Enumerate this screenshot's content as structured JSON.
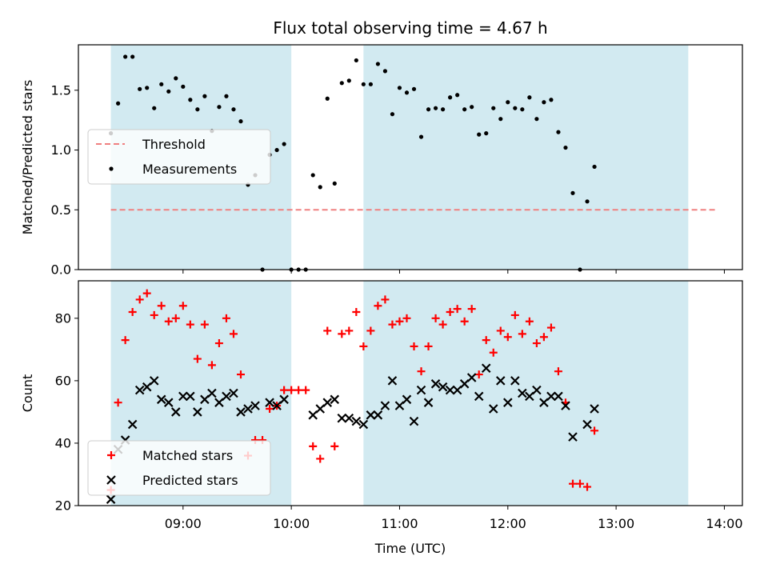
{
  "chart_data": {
    "type": "scatter",
    "title": "Flux total observing time = 4.67 h",
    "xlabel": "Time (UTC)",
    "x_ticks": [
      "09:00",
      "10:00",
      "11:00",
      "12:00",
      "13:00",
      "14:00"
    ],
    "xlim": [
      "08:02",
      "14:10"
    ],
    "observing_spans": [
      [
        "08:20",
        "10:00"
      ],
      [
        "10:40",
        "13:40"
      ]
    ],
    "span_color": "#add8e6",
    "grid": false,
    "panels": [
      {
        "ylabel": "Matched/Predicted stars",
        "ylim": [
          0,
          1.88
        ],
        "y_ticks": [
          0.0,
          0.5,
          1.0,
          1.5
        ],
        "legend_position": "center-left",
        "threshold": {
          "name": "Threshold",
          "value": 0.5,
          "x_range": [
            "08:20",
            "13:55"
          ],
          "color": "#f08080"
        },
        "series": [
          {
            "name": "Measurements",
            "marker": "dot",
            "color": "#000000",
            "points": [
              [
                "08:20",
                1.14
              ],
              [
                "08:24",
                1.39
              ],
              [
                "08:28",
                1.78
              ],
              [
                "08:32",
                1.78
              ],
              [
                "08:36",
                1.51
              ],
              [
                "08:40",
                1.52
              ],
              [
                "08:44",
                1.35
              ],
              [
                "08:48",
                1.55
              ],
              [
                "08:52",
                1.49
              ],
              [
                "08:56",
                1.6
              ],
              [
                "09:00",
                1.53
              ],
              [
                "09:04",
                1.42
              ],
              [
                "09:08",
                1.34
              ],
              [
                "09:12",
                1.45
              ],
              [
                "09:16",
                1.16
              ],
              [
                "09:20",
                1.36
              ],
              [
                "09:24",
                1.45
              ],
              [
                "09:28",
                1.34
              ],
              [
                "09:32",
                1.24
              ],
              [
                "09:36",
                0.71
              ],
              [
                "09:40",
                0.79
              ],
              [
                "09:44",
                0.0
              ],
              [
                "09:48",
                0.96
              ],
              [
                "09:52",
                1.0
              ],
              [
                "09:56",
                1.05
              ],
              [
                "10:00",
                0.0
              ],
              [
                "10:04",
                0.0
              ],
              [
                "10:08",
                0.0
              ],
              [
                "10:12",
                0.79
              ],
              [
                "10:16",
                0.69
              ],
              [
                "10:20",
                1.43
              ],
              [
                "10:24",
                0.72
              ],
              [
                "10:28",
                1.56
              ],
              [
                "10:32",
                1.58
              ],
              [
                "10:36",
                1.75
              ],
              [
                "10:40",
                1.55
              ],
              [
                "10:44",
                1.55
              ],
              [
                "10:48",
                1.72
              ],
              [
                "10:52",
                1.66
              ],
              [
                "10:56",
                1.3
              ],
              [
                "11:00",
                1.52
              ],
              [
                "11:04",
                1.48
              ],
              [
                "11:08",
                1.51
              ],
              [
                "11:12",
                1.11
              ],
              [
                "11:16",
                1.34
              ],
              [
                "11:20",
                1.35
              ],
              [
                "11:24",
                1.34
              ],
              [
                "11:28",
                1.44
              ],
              [
                "11:32",
                1.46
              ],
              [
                "11:36",
                1.34
              ],
              [
                "11:40",
                1.36
              ],
              [
                "11:44",
                1.13
              ],
              [
                "11:48",
                1.14
              ],
              [
                "11:52",
                1.35
              ],
              [
                "11:56",
                1.26
              ],
              [
                "12:00",
                1.4
              ],
              [
                "12:04",
                1.35
              ],
              [
                "12:08",
                1.34
              ],
              [
                "12:12",
                1.44
              ],
              [
                "12:16",
                1.26
              ],
              [
                "12:20",
                1.4
              ],
              [
                "12:24",
                1.42
              ],
              [
                "12:28",
                1.15
              ],
              [
                "12:32",
                1.02
              ],
              [
                "12:36",
                0.64
              ],
              [
                "12:40",
                0.0
              ],
              [
                "12:44",
                0.57
              ],
              [
                "12:48",
                0.86
              ]
            ]
          }
        ]
      },
      {
        "ylabel": "Count",
        "ylim": [
          20,
          92
        ],
        "y_ticks": [
          20,
          40,
          60,
          80
        ],
        "legend_position": "lower-left",
        "series": [
          {
            "name": "Matched stars",
            "marker": "plus",
            "color": "#ff0000",
            "points": [
              [
                "08:20",
                25
              ],
              [
                "08:24",
                53
              ],
              [
                "08:28",
                73
              ],
              [
                "08:32",
                82
              ],
              [
                "08:36",
                86
              ],
              [
                "08:40",
                88
              ],
              [
                "08:44",
                81
              ],
              [
                "08:48",
                84
              ],
              [
                "08:52",
                79
              ],
              [
                "08:56",
                80
              ],
              [
                "09:00",
                84
              ],
              [
                "09:04",
                78
              ],
              [
                "09:08",
                67
              ],
              [
                "09:12",
                78
              ],
              [
                "09:16",
                65
              ],
              [
                "09:20",
                72
              ],
              [
                "09:24",
                80
              ],
              [
                "09:28",
                75
              ],
              [
                "09:32",
                62
              ],
              [
                "09:36",
                36
              ],
              [
                "09:40",
                41
              ],
              [
                "09:44",
                41
              ],
              [
                "09:48",
                51
              ],
              [
                "09:52",
                52
              ],
              [
                "09:56",
                57
              ],
              [
                "10:00",
                57
              ],
              [
                "10:04",
                57
              ],
              [
                "10:08",
                57
              ],
              [
                "10:12",
                39
              ],
              [
                "10:16",
                35
              ],
              [
                "10:20",
                76
              ],
              [
                "10:24",
                39
              ],
              [
                "10:28",
                75
              ],
              [
                "10:32",
                76
              ],
              [
                "10:36",
                82
              ],
              [
                "10:40",
                71
              ],
              [
                "10:44",
                76
              ],
              [
                "10:48",
                84
              ],
              [
                "10:52",
                86
              ],
              [
                "10:56",
                78
              ],
              [
                "11:00",
                79
              ],
              [
                "11:04",
                80
              ],
              [
                "11:08",
                71
              ],
              [
                "11:12",
                63
              ],
              [
                "11:16",
                71
              ],
              [
                "11:20",
                80
              ],
              [
                "11:24",
                78
              ],
              [
                "11:28",
                82
              ],
              [
                "11:32",
                83
              ],
              [
                "11:36",
                79
              ],
              [
                "11:40",
                83
              ],
              [
                "11:44",
                62
              ],
              [
                "11:48",
                73
              ],
              [
                "11:52",
                69
              ],
              [
                "11:56",
                76
              ],
              [
                "12:00",
                74
              ],
              [
                "12:04",
                81
              ],
              [
                "12:08",
                75
              ],
              [
                "12:12",
                79
              ],
              [
                "12:16",
                72
              ],
              [
                "12:20",
                74
              ],
              [
                "12:24",
                77
              ],
              [
                "12:28",
                63
              ],
              [
                "12:32",
                53
              ],
              [
                "12:36",
                27
              ],
              [
                "12:40",
                27
              ],
              [
                "12:44",
                26
              ],
              [
                "12:48",
                44
              ]
            ]
          },
          {
            "name": "Predicted stars",
            "marker": "x",
            "color": "#000000",
            "points": [
              [
                "08:20",
                22
              ],
              [
                "08:24",
                38
              ],
              [
                "08:28",
                41
              ],
              [
                "08:32",
                46
              ],
              [
                "08:36",
                57
              ],
              [
                "08:40",
                58
              ],
              [
                "08:44",
                60
              ],
              [
                "08:48",
                54
              ],
              [
                "08:52",
                53
              ],
              [
                "08:56",
                50
              ],
              [
                "09:00",
                55
              ],
              [
                "09:04",
                55
              ],
              [
                "09:08",
                50
              ],
              [
                "09:12",
                54
              ],
              [
                "09:16",
                56
              ],
              [
                "09:20",
                53
              ],
              [
                "09:24",
                55
              ],
              [
                "09:28",
                56
              ],
              [
                "09:32",
                50
              ],
              [
                "09:36",
                51
              ],
              [
                "09:40",
                52
              ],
              [
                "09:48",
                53
              ],
              [
                "09:52",
                52
              ],
              [
                "09:56",
                54
              ],
              [
                "10:12",
                49
              ],
              [
                "10:16",
                51
              ],
              [
                "10:20",
                53
              ],
              [
                "10:24",
                54
              ],
              [
                "10:28",
                48
              ],
              [
                "10:32",
                48
              ],
              [
                "10:36",
                47
              ],
              [
                "10:40",
                46
              ],
              [
                "10:44",
                49
              ],
              [
                "10:48",
                49
              ],
              [
                "10:52",
                52
              ],
              [
                "10:56",
                60
              ],
              [
                "11:00",
                52
              ],
              [
                "11:04",
                54
              ],
              [
                "11:08",
                47
              ],
              [
                "11:12",
                57
              ],
              [
                "11:16",
                53
              ],
              [
                "11:20",
                59
              ],
              [
                "11:24",
                58
              ],
              [
                "11:28",
                57
              ],
              [
                "11:32",
                57
              ],
              [
                "11:36",
                59
              ],
              [
                "11:40",
                61
              ],
              [
                "11:44",
                55
              ],
              [
                "11:48",
                64
              ],
              [
                "11:52",
                51
              ],
              [
                "11:56",
                60
              ],
              [
                "12:00",
                53
              ],
              [
                "12:04",
                60
              ],
              [
                "12:08",
                56
              ],
              [
                "12:12",
                55
              ],
              [
                "12:16",
                57
              ],
              [
                "12:20",
                53
              ],
              [
                "12:24",
                55
              ],
              [
                "12:28",
                55
              ],
              [
                "12:32",
                52
              ],
              [
                "12:36",
                42
              ],
              [
                "12:44",
                46
              ],
              [
                "12:48",
                51
              ]
            ]
          }
        ]
      }
    ]
  }
}
